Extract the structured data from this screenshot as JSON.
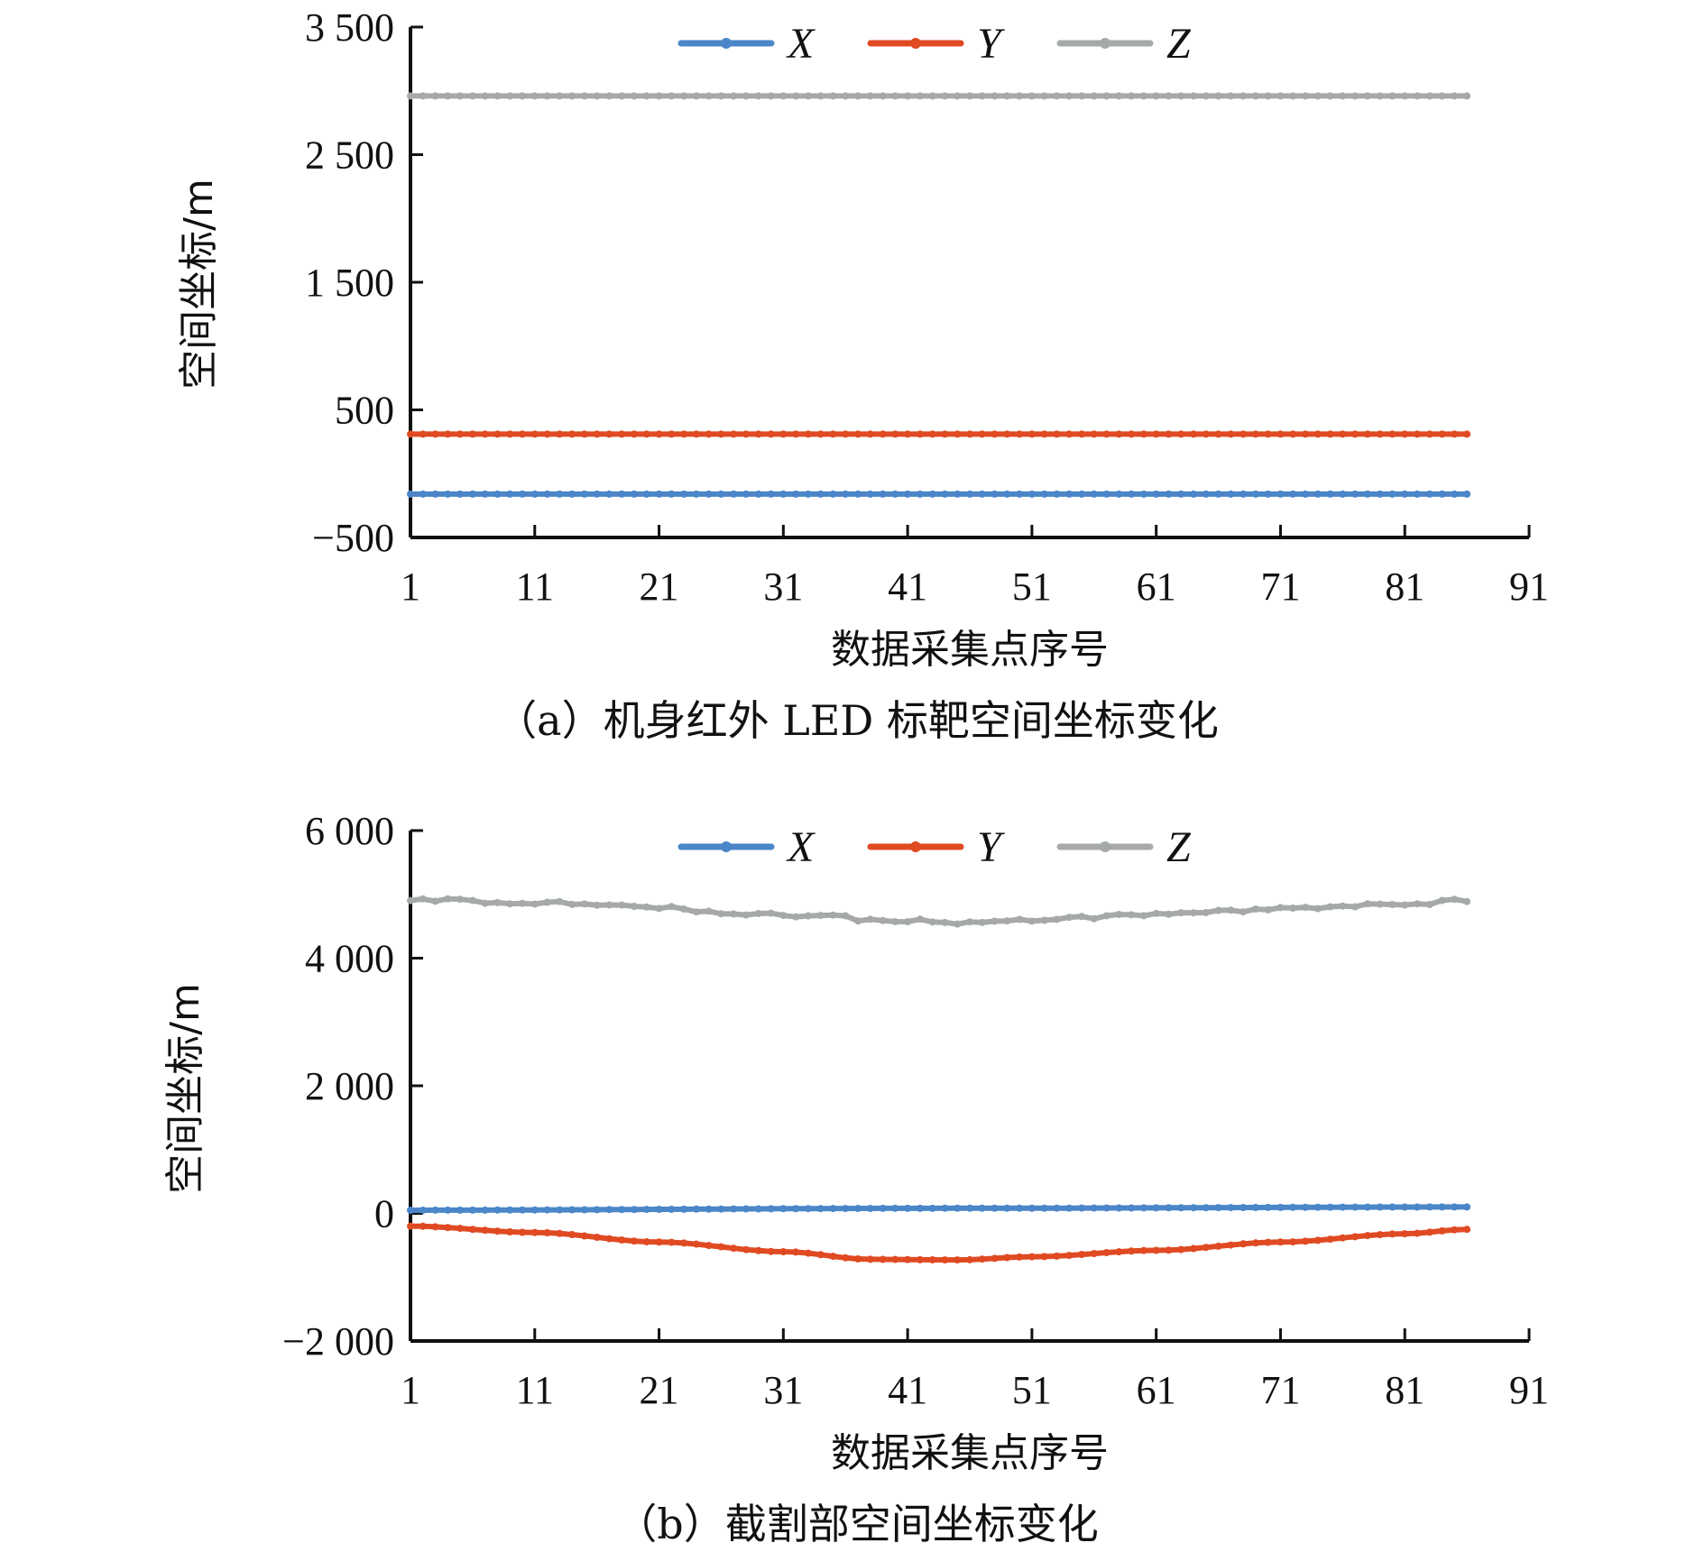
{
  "colors": {
    "X": "#4a86c8",
    "Y": "#e04a23",
    "Z": "#a6aaa7",
    "axis": "#111111"
  },
  "chart_data": [
    {
      "type": "line",
      "caption": "（a）机身红外 LED 标靶空间坐标变化",
      "xlabel": "数据采集点序号",
      "ylabel": "空间坐标/m",
      "xlim": [
        1,
        91
      ],
      "ylim": [
        -500,
        3500
      ],
      "x_ticks": [
        1,
        11,
        21,
        31,
        41,
        51,
        61,
        71,
        81,
        91
      ],
      "x_tick_labels": [
        "1",
        "11",
        "21",
        "31",
        "41",
        "51",
        "61",
        "71",
        "81",
        "91"
      ],
      "y_ticks": [
        -500,
        500,
        1500,
        2500,
        3500
      ],
      "y_tick_labels": [
        "−500",
        "500",
        "1 500",
        "2 500",
        "3 500"
      ],
      "legend": {
        "position": "top-center",
        "entries": [
          "X",
          "Y",
          "Z"
        ]
      },
      "grid": false,
      "x_range": [
        1,
        86
      ],
      "series": [
        {
          "name": "X",
          "color_key": "X",
          "shape": "flat",
          "anchors": [
            [
              1,
              -160
            ],
            [
              86,
              -160
            ]
          ]
        },
        {
          "name": "Y",
          "color_key": "Y",
          "shape": "flat",
          "anchors": [
            [
              1,
              310
            ],
            [
              86,
              310
            ]
          ]
        },
        {
          "name": "Z",
          "color_key": "Z",
          "shape": "flat",
          "anchors": [
            [
              1,
              2960
            ],
            [
              86,
              2960
            ]
          ]
        }
      ]
    },
    {
      "type": "line",
      "caption": "（b）截割部空间坐标变化",
      "xlabel": "数据采集点序号",
      "ylabel": "空间坐标/m",
      "xlim": [
        1,
        91
      ],
      "ylim": [
        -2000,
        6000
      ],
      "x_ticks": [
        1,
        11,
        21,
        31,
        41,
        51,
        61,
        71,
        81,
        91
      ],
      "x_tick_labels": [
        "1",
        "11",
        "21",
        "31",
        "41",
        "51",
        "61",
        "71",
        "81",
        "91"
      ],
      "y_ticks": [
        -2000,
        0,
        2000,
        4000,
        6000
      ],
      "y_tick_labels": [
        "−2 000",
        "0",
        "2 000",
        "4 000",
        "6 000"
      ],
      "legend": {
        "position": "top-center",
        "entries": [
          "X",
          "Y",
          "Z"
        ]
      },
      "grid": false,
      "x_range": [
        1,
        86
      ],
      "series": [
        {
          "name": "X",
          "color_key": "X",
          "shape": "smooth",
          "anchors": [
            [
              1,
              50
            ],
            [
              45,
              80
            ],
            [
              86,
              100
            ]
          ]
        },
        {
          "name": "Y",
          "color_key": "Y",
          "shape": "smooth",
          "anchors": [
            [
              1,
              -200
            ],
            [
              11,
              -300
            ],
            [
              21,
              -450
            ],
            [
              31,
              -600
            ],
            [
              38,
              -720
            ],
            [
              45,
              -730
            ],
            [
              51,
              -680
            ],
            [
              61,
              -580
            ],
            [
              71,
              -450
            ],
            [
              81,
              -320
            ],
            [
              86,
              -250
            ]
          ]
        },
        {
          "name": "Z",
          "color_key": "Z",
          "shape": "jitter",
          "anchors": [
            [
              1,
              4900
            ],
            [
              11,
              4880
            ],
            [
              21,
              4780
            ],
            [
              31,
              4680
            ],
            [
              41,
              4580
            ],
            [
              45,
              4560
            ],
            [
              51,
              4590
            ],
            [
              61,
              4680
            ],
            [
              71,
              4760
            ],
            [
              81,
              4850
            ],
            [
              86,
              4900
            ]
          ]
        }
      ]
    }
  ]
}
